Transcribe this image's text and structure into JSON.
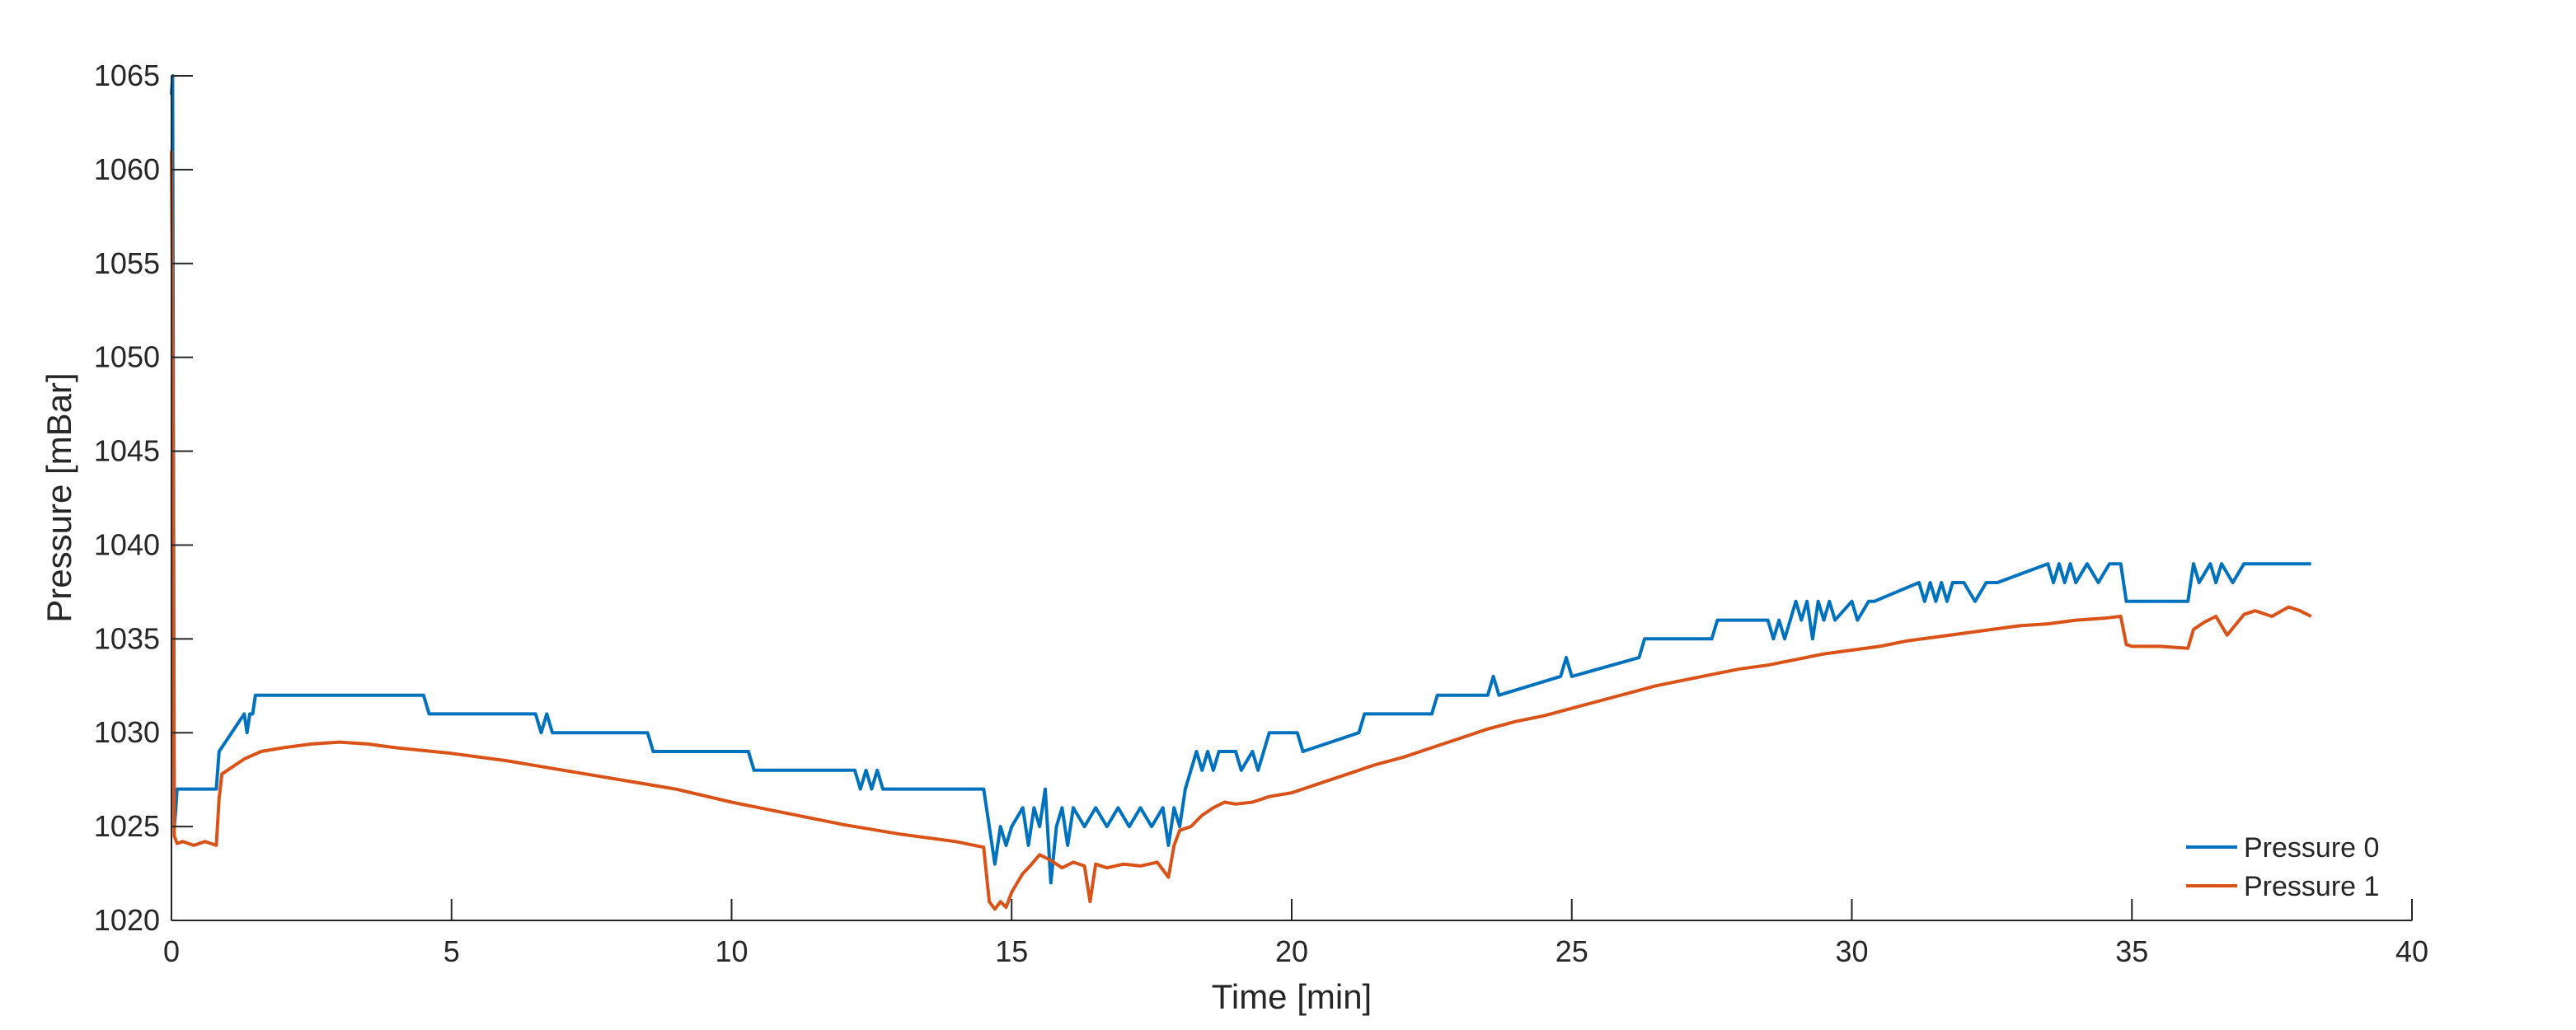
{
  "chart_data": {
    "type": "line",
    "title": "",
    "xlabel": "Time [min]",
    "ylabel": "Pressure [mBar]",
    "xlim": [
      0,
      40
    ],
    "ylim": [
      1020,
      1065
    ],
    "xticks": [
      0,
      5,
      10,
      15,
      20,
      25,
      30,
      35,
      40
    ],
    "yticks": [
      1020,
      1025,
      1030,
      1035,
      1040,
      1045,
      1050,
      1055,
      1060,
      1065
    ],
    "grid": false,
    "legend_position": "bottom-right",
    "series": [
      {
        "name": "Pressure 0",
        "color": "#0072BD",
        "x": [
          0,
          0.02,
          0.05,
          0.08,
          0.1,
          0.8,
          0.85,
          1.3,
          1.35,
          1.4,
          1.45,
          1.5,
          4.5,
          4.6,
          6.5,
          6.6,
          6.7,
          6.8,
          8.5,
          8.6,
          10.3,
          10.4,
          12.2,
          12.3,
          12.4,
          12.5,
          12.6,
          12.7,
          14.5,
          14.6,
          14.7,
          14.8,
          14.9,
          15.0,
          15.2,
          15.3,
          15.4,
          15.5,
          15.6,
          15.7,
          15.8,
          15.9,
          16.0,
          16.1,
          16.3,
          16.5,
          16.7,
          16.9,
          17.1,
          17.3,
          17.5,
          17.7,
          17.8,
          17.9,
          18.0,
          18.1,
          18.2,
          18.3,
          18.4,
          18.5,
          18.6,
          18.7,
          19.0,
          19.1,
          19.3,
          19.4,
          19.5,
          19.6,
          20.1,
          20.2,
          21.2,
          21.3,
          22.5,
          22.6,
          23.5,
          23.6,
          23.7,
          24.8,
          24.9,
          25.0,
          26.2,
          26.3,
          27.5,
          27.6,
          28.5,
          28.6,
          28.7,
          28.8,
          28.9,
          29.0,
          29.1,
          29.2,
          29.3,
          29.4,
          29.5,
          29.6,
          29.7,
          30.0,
          30.1,
          30.3,
          30.4,
          31.2,
          31.3,
          31.4,
          31.5,
          31.6,
          31.7,
          31.8,
          32.0,
          32.2,
          32.4,
          32.6,
          33.5,
          33.6,
          33.7,
          33.8,
          33.9,
          34.0,
          34.2,
          34.4,
          34.6,
          34.8,
          34.9,
          36.0,
          36.1,
          36.2,
          36.4,
          36.5,
          36.6,
          36.8,
          37.0,
          37.2,
          38.2
        ],
        "values": [
          1064,
          1065,
          1025,
          1026,
          1027,
          1027,
          1029,
          1031,
          1030,
          1031,
          1031,
          1032,
          1032,
          1031,
          1031,
          1030,
          1031,
          1030,
          1030,
          1029,
          1029,
          1028,
          1028,
          1027,
          1028,
          1027,
          1028,
          1027,
          1027,
          1025,
          1023,
          1025,
          1024,
          1025,
          1026,
          1024,
          1026,
          1025,
          1027,
          1022,
          1025,
          1026,
          1024,
          1026,
          1025,
          1026,
          1025,
          1026,
          1025,
          1026,
          1025,
          1026,
          1024,
          1026,
          1025,
          1027,
          1028,
          1029,
          1028,
          1029,
          1028,
          1029,
          1029,
          1028,
          1029,
          1028,
          1029,
          1030,
          1030,
          1029,
          1030,
          1031,
          1031,
          1032,
          1032,
          1033,
          1032,
          1033,
          1034,
          1033,
          1034,
          1035,
          1035,
          1036,
          1036,
          1035,
          1036,
          1035,
          1036,
          1037,
          1036,
          1037,
          1035,
          1037,
          1036,
          1037,
          1036,
          1037,
          1036,
          1037,
          1037,
          1038,
          1037,
          1038,
          1037,
          1038,
          1037,
          1038,
          1038,
          1037,
          1038,
          1038,
          1039,
          1038,
          1039,
          1038,
          1039,
          1038,
          1039,
          1038,
          1039,
          1039,
          1037,
          1037,
          1039,
          1038,
          1039,
          1038,
          1039,
          1038,
          1039,
          1039,
          1039
        ]
      },
      {
        "name": "Pressure 1",
        "color": "#D95319",
        "x": [
          0,
          0.02,
          0.05,
          0.1,
          0.2,
          0.4,
          0.6,
          0.8,
          0.85,
          0.9,
          1.0,
          1.3,
          1.6,
          2.0,
          2.5,
          3.0,
          3.5,
          4.0,
          5.0,
          6.0,
          7.0,
          8.0,
          9.0,
          10.0,
          11.0,
          12.0,
          13.0,
          14.0,
          14.5,
          14.6,
          14.7,
          14.8,
          14.9,
          15.0,
          15.1,
          15.2,
          15.3,
          15.5,
          15.7,
          15.9,
          16.1,
          16.3,
          16.4,
          16.5,
          16.7,
          17.0,
          17.3,
          17.6,
          17.8,
          17.9,
          18.0,
          18.2,
          18.4,
          18.6,
          18.8,
          19.0,
          19.3,
          19.6,
          20.0,
          20.5,
          21.0,
          21.5,
          22.0,
          22.5,
          23.0,
          23.5,
          24.0,
          24.5,
          25.0,
          25.5,
          26.0,
          26.5,
          27.0,
          27.5,
          28.0,
          28.5,
          29.0,
          29.5,
          30.0,
          30.5,
          31.0,
          31.5,
          32.0,
          32.5,
          33.0,
          33.5,
          34.0,
          34.5,
          34.8,
          34.9,
          35.0,
          35.5,
          36.0,
          36.1,
          36.3,
          36.5,
          36.7,
          37.0,
          37.2,
          37.5,
          37.8,
          38.0,
          38.2
        ],
        "values": [
          1061,
          1052,
          1024.5,
          1024.1,
          1024.2,
          1024.0,
          1024.2,
          1024.0,
          1026.5,
          1027.8,
          1028.0,
          1028.6,
          1029.0,
          1029.2,
          1029.4,
          1029.5,
          1029.4,
          1029.2,
          1028.9,
          1028.5,
          1028.0,
          1027.5,
          1027.0,
          1026.3,
          1025.7,
          1025.1,
          1024.6,
          1024.2,
          1023.9,
          1021.0,
          1020.6,
          1021.0,
          1020.7,
          1021.5,
          1022.0,
          1022.5,
          1022.8,
          1023.5,
          1023.2,
          1022.8,
          1023.1,
          1022.9,
          1021.0,
          1023.0,
          1022.8,
          1023.0,
          1022.9,
          1023.1,
          1022.3,
          1024.0,
          1024.8,
          1025.0,
          1025.6,
          1026.0,
          1026.3,
          1026.2,
          1026.3,
          1026.6,
          1026.8,
          1027.3,
          1027.8,
          1028.3,
          1028.7,
          1029.2,
          1029.7,
          1030.2,
          1030.6,
          1030.9,
          1031.3,
          1031.7,
          1032.1,
          1032.5,
          1032.8,
          1033.1,
          1033.4,
          1033.6,
          1033.9,
          1034.2,
          1034.4,
          1034.6,
          1034.9,
          1035.1,
          1035.3,
          1035.5,
          1035.7,
          1035.8,
          1036.0,
          1036.1,
          1036.2,
          1034.7,
          1034.6,
          1034.6,
          1034.5,
          1035.5,
          1035.9,
          1036.2,
          1035.2,
          1036.3,
          1036.5,
          1036.2,
          1036.7,
          1036.5,
          1036.2
        ]
      }
    ]
  }
}
